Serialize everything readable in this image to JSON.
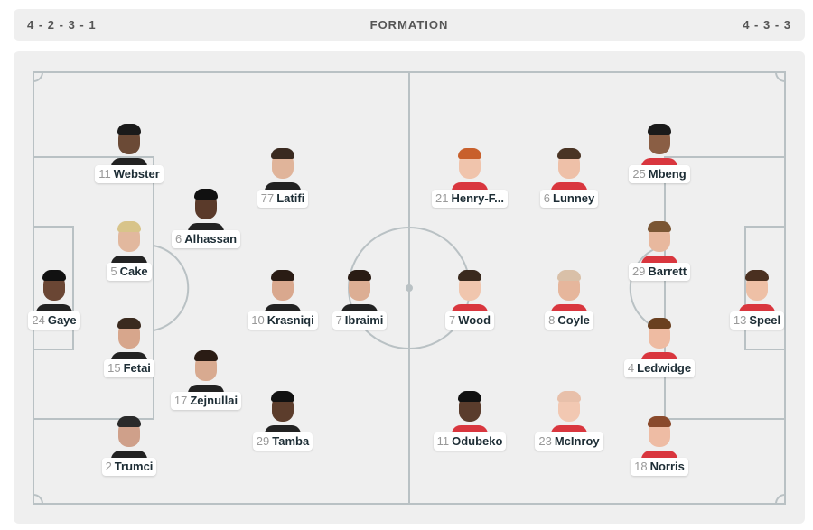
{
  "header": {
    "home_formation": "4 - 2 - 3 - 1",
    "title": "FORMATION",
    "away_formation": "4 - 3 - 3"
  },
  "colors": {
    "background": "#efefef",
    "pitch_lines": "#b9c1c4",
    "label_text": "#1d2d35",
    "number_text": "#999999",
    "home_shirt": "#222222",
    "away_shirt": "#d9363e"
  },
  "home_players": [
    {
      "number": "11",
      "name": "Webster"
    },
    {
      "number": "77",
      "name": "Latifi"
    },
    {
      "number": "6",
      "name": "Alhassan"
    },
    {
      "number": "5",
      "name": "Cake"
    },
    {
      "number": "24",
      "name": "Gaye"
    },
    {
      "number": "10",
      "name": "Krasniqi"
    },
    {
      "number": "7",
      "name": "Ibraimi"
    },
    {
      "number": "15",
      "name": "Fetai"
    },
    {
      "number": "17",
      "name": "Zejnullai"
    },
    {
      "number": "29",
      "name": "Tamba"
    },
    {
      "number": "2",
      "name": "Trumci"
    }
  ],
  "away_players": [
    {
      "number": "21",
      "name": "Henry-F..."
    },
    {
      "number": "6",
      "name": "Lunney"
    },
    {
      "number": "25",
      "name": "Mbeng"
    },
    {
      "number": "29",
      "name": "Barrett"
    },
    {
      "number": "7",
      "name": "Wood"
    },
    {
      "number": "8",
      "name": "Coyle"
    },
    {
      "number": "13",
      "name": "Speel"
    },
    {
      "number": "4",
      "name": "Ledwidge"
    },
    {
      "number": "11",
      "name": "Odubeko"
    },
    {
      "number": "23",
      "name": "McInroy"
    },
    {
      "number": "18",
      "name": "Norris"
    }
  ]
}
